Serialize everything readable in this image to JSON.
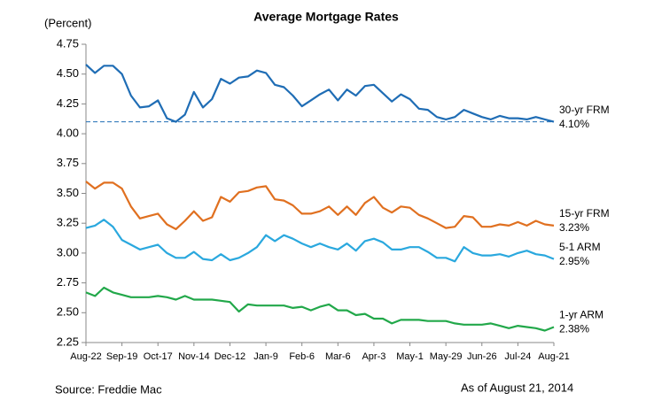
{
  "chart_data": {
    "type": "line",
    "title": "Average Mortgage Rates",
    "y_label": "(Percent)",
    "source": "Source: Freddie Mac",
    "date_note": "As of August 21, 2014",
    "categories": [
      "Aug-22",
      null,
      null,
      null,
      "Sep-19",
      null,
      null,
      null,
      "Oct-17",
      null,
      null,
      null,
      "Nov-14",
      null,
      null,
      null,
      "Dec-12",
      null,
      null,
      null,
      "Jan-9",
      null,
      null,
      null,
      "Feb-6",
      null,
      null,
      null,
      "Mar-6",
      null,
      null,
      null,
      "Apr-3",
      null,
      null,
      null,
      "May-1",
      null,
      null,
      null,
      "May-29",
      null,
      null,
      null,
      "Jun-26",
      null,
      null,
      null,
      "Jul-24",
      null,
      null,
      null,
      "Aug-21"
    ],
    "series": [
      {
        "name": "30-yr FRM",
        "color": "#1f6db5",
        "end_label": "4.10%",
        "reference_line": true,
        "values": [
          4.58,
          4.51,
          4.57,
          4.57,
          4.5,
          4.32,
          4.22,
          4.23,
          4.28,
          4.13,
          4.1,
          4.16,
          4.35,
          4.22,
          4.29,
          4.46,
          4.42,
          4.47,
          4.48,
          4.53,
          4.51,
          4.41,
          4.39,
          4.32,
          4.23,
          4.28,
          4.33,
          4.37,
          4.28,
          4.37,
          4.32,
          4.4,
          4.41,
          4.34,
          4.27,
          4.33,
          4.29,
          4.21,
          4.2,
          4.14,
          4.12,
          4.14,
          4.2,
          4.17,
          4.14,
          4.12,
          4.15,
          4.13,
          4.13,
          4.12,
          4.14,
          4.12,
          4.1
        ]
      },
      {
        "name": "15-yr FRM",
        "color": "#e07020",
        "end_label": "3.23%",
        "values": [
          3.6,
          3.54,
          3.59,
          3.59,
          3.54,
          3.39,
          3.29,
          3.31,
          3.33,
          3.24,
          3.2,
          3.27,
          3.35,
          3.27,
          3.3,
          3.47,
          3.43,
          3.51,
          3.52,
          3.55,
          3.56,
          3.45,
          3.44,
          3.4,
          3.33,
          3.33,
          3.35,
          3.39,
          3.32,
          3.39,
          3.32,
          3.42,
          3.47,
          3.38,
          3.34,
          3.39,
          3.38,
          3.32,
          3.29,
          3.25,
          3.21,
          3.22,
          3.31,
          3.3,
          3.22,
          3.22,
          3.24,
          3.23,
          3.26,
          3.23,
          3.27,
          3.24,
          3.23
        ]
      },
      {
        "name": "5-1 ARM",
        "color": "#2aa8de",
        "end_label": "2.95%",
        "values": [
          3.21,
          3.23,
          3.28,
          3.22,
          3.11,
          3.07,
          3.03,
          3.05,
          3.07,
          3.0,
          2.96,
          2.96,
          3.01,
          2.95,
          2.94,
          2.99,
          2.94,
          2.96,
          3.0,
          3.05,
          3.15,
          3.1,
          3.15,
          3.12,
          3.08,
          3.05,
          3.08,
          3.05,
          3.03,
          3.08,
          3.02,
          3.1,
          3.12,
          3.09,
          3.03,
          3.03,
          3.05,
          3.05,
          3.01,
          2.96,
          2.96,
          2.93,
          3.05,
          3.0,
          2.98,
          2.98,
          2.99,
          2.97,
          3.0,
          3.02,
          2.99,
          2.98,
          2.95
        ]
      },
      {
        "name": "1-yr ARM",
        "color": "#22a84a",
        "end_label": "2.38%",
        "values": [
          2.67,
          2.64,
          2.71,
          2.67,
          2.65,
          2.63,
          2.63,
          2.63,
          2.64,
          2.63,
          2.61,
          2.64,
          2.61,
          2.61,
          2.61,
          2.6,
          2.59,
          2.51,
          2.57,
          2.56,
          2.56,
          2.56,
          2.56,
          2.54,
          2.55,
          2.52,
          2.55,
          2.57,
          2.52,
          2.52,
          2.48,
          2.49,
          2.45,
          2.45,
          2.41,
          2.44,
          2.44,
          2.44,
          2.43,
          2.43,
          2.43,
          2.41,
          2.4,
          2.4,
          2.4,
          2.41,
          2.39,
          2.37,
          2.39,
          2.38,
          2.37,
          2.35,
          2.38
        ]
      }
    ],
    "ylim": [
      2.25,
      4.75
    ],
    "yticks": [
      {
        "value": 2.25,
        "label": "2.25"
      },
      {
        "value": 2.5,
        "label": "2.50"
      },
      {
        "value": 2.75,
        "label": "2.75"
      },
      {
        "value": 3,
        "label": "3.00"
      },
      {
        "value": 3.25,
        "label": "3.25"
      },
      {
        "value": 3.5,
        "label": "3.50"
      },
      {
        "value": 3.75,
        "label": "3.75"
      },
      {
        "value": 4,
        "label": "4.00"
      },
      {
        "value": 4.25,
        "label": "4.25"
      },
      {
        "value": 4.5,
        "label": "4.50"
      },
      {
        "value": 4.75,
        "label": "4.75"
      }
    ],
    "grid": false
  }
}
